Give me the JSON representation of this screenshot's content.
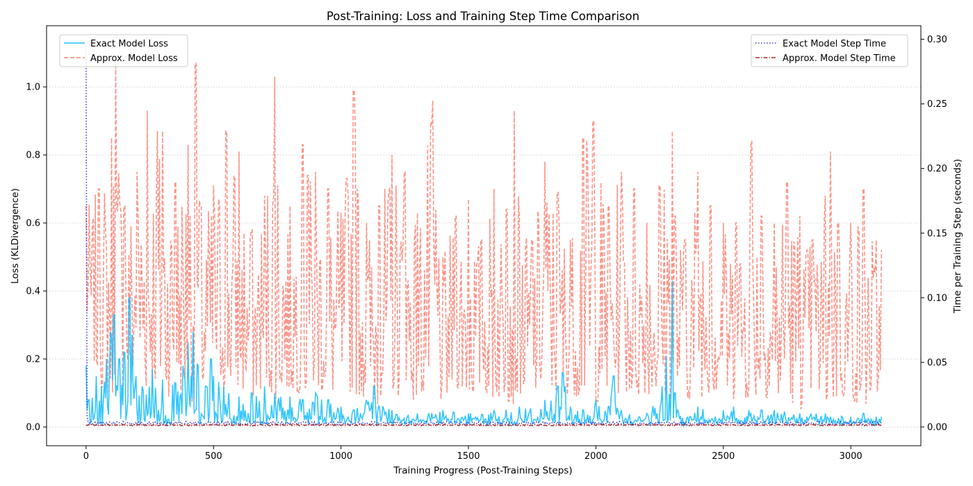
{
  "chart_data": {
    "type": "line",
    "title": "Post-Training: Loss and Training Step Time Comparison",
    "xlabel": "Training Progress (Post-Training Steps)",
    "ylabel_left": "Loss (KLDivergence)",
    "ylabel_right": "Time per Training Step (seconds)",
    "xlim": [
      -155,
      3275
    ],
    "ylim_left": [
      -0.055,
      1.18
    ],
    "ylim_right": [
      -0.0145,
      0.3105
    ],
    "x_ticks": [
      0,
      500,
      1000,
      1500,
      2000,
      2500,
      3000
    ],
    "y_left_ticks": [
      0.0,
      0.2,
      0.4,
      0.6,
      0.8,
      1.0
    ],
    "y_right_ticks": [
      0.0,
      0.05,
      0.1,
      0.15,
      0.2,
      0.25,
      0.3
    ],
    "grid": "horizontal dotted",
    "legend_left_placement": "upper left",
    "legend_right_placement": "upper right",
    "n_steps": 3120,
    "series": [
      {
        "name": "Exact Model Loss",
        "axis": "left",
        "color": "#1ec0ff",
        "style": "solid",
        "baseline": 0.02,
        "x": [
          0,
          10,
          40,
          60,
          80,
          95,
          110,
          130,
          150,
          170,
          195,
          220,
          260,
          300,
          350,
          380,
          400,
          420,
          440,
          470,
          490,
          500,
          540,
          560,
          600,
          650,
          700,
          740,
          800,
          850,
          900,
          950,
          1000,
          1050,
          1100,
          1130,
          1200,
          1300,
          1400,
          1500,
          1600,
          1700,
          1800,
          1850,
          1870,
          1880,
          1900,
          1950,
          2000,
          2050,
          2070,
          2100,
          2200,
          2260,
          2300,
          2310,
          2320,
          2400,
          2500,
          2540,
          2600,
          2650,
          2700,
          2800,
          2900,
          3000,
          3050,
          3100,
          3120
        ],
        "peaks": [
          0.18,
          0.08,
          0.15,
          0.12,
          0.2,
          0.28,
          0.33,
          0.2,
          0.22,
          0.38,
          0.15,
          0.12,
          0.17,
          0.14,
          0.13,
          0.18,
          0.25,
          0.28,
          0.18,
          0.12,
          0.2,
          0.15,
          0.12,
          0.1,
          0.09,
          0.1,
          0.12,
          0.1,
          0.09,
          0.08,
          0.1,
          0.08,
          0.06,
          0.05,
          0.08,
          0.12,
          0.05,
          0.04,
          0.05,
          0.04,
          0.05,
          0.06,
          0.08,
          0.12,
          0.16,
          0.12,
          0.06,
          0.05,
          0.08,
          0.06,
          0.15,
          0.05,
          0.04,
          0.12,
          0.43,
          0.1,
          0.05,
          0.06,
          0.05,
          0.06,
          0.05,
          0.05,
          0.05,
          0.04,
          0.04,
          0.03,
          0.04,
          0.03,
          0.03
        ]
      },
      {
        "name": "Approx. Model Loss",
        "axis": "left",
        "color": "#fa8072",
        "style": "dashed",
        "x": [
          0,
          50,
          100,
          115,
          150,
          200,
          240,
          280,
          300,
          350,
          400,
          430,
          450,
          500,
          550,
          600,
          650,
          700,
          740,
          800,
          850,
          870,
          900,
          950,
          1000,
          1050,
          1100,
          1150,
          1200,
          1250,
          1300,
          1360,
          1400,
          1450,
          1500,
          1550,
          1600,
          1650,
          1680,
          1700,
          1750,
          1800,
          1850,
          1900,
          1950,
          1990,
          2050,
          2100,
          2150,
          2200,
          2250,
          2300,
          2310,
          2350,
          2400,
          2450,
          2500,
          2550,
          2610,
          2650,
          2700,
          2750,
          2800,
          2850,
          2900,
          2920,
          2950,
          3000,
          3050,
          3100,
          3120
        ],
        "lows": [
          0.3,
          0.12,
          0.08,
          0.12,
          0.1,
          0.15,
          0.1,
          0.12,
          0.08,
          0.1,
          0.1,
          0.05,
          0.08,
          0.12,
          0.1,
          0.1,
          0.08,
          0.12,
          0.08,
          0.1,
          0.1,
          0.06,
          0.12,
          0.08,
          0.1,
          0.1,
          0.08,
          0.05,
          0.1,
          0.08,
          0.08,
          0.1,
          0.06,
          0.12,
          0.08,
          0.1,
          0.08,
          0.08,
          0.06,
          0.1,
          0.08,
          0.12,
          0.08,
          0.1,
          0.08,
          0.07,
          0.08,
          0.1,
          0.08,
          0.1,
          0.08,
          0.08,
          0.1,
          0.08,
          0.08,
          0.1,
          0.08,
          0.08,
          0.08,
          0.1,
          0.07,
          0.08,
          0.05,
          0.08,
          0.05,
          0.06,
          0.08,
          0.08,
          0.05,
          0.08,
          0.08
        ],
        "highs": [
          0.65,
          0.7,
          0.85,
          1.07,
          0.65,
          0.75,
          0.93,
          0.87,
          0.87,
          0.72,
          0.83,
          1.07,
          0.65,
          0.71,
          0.87,
          0.81,
          0.58,
          0.68,
          1.03,
          0.65,
          0.83,
          0.74,
          0.75,
          0.7,
          0.63,
          0.99,
          0.6,
          0.65,
          0.8,
          0.75,
          0.63,
          0.96,
          0.5,
          0.62,
          0.67,
          0.55,
          0.7,
          0.64,
          0.93,
          0.62,
          0.55,
          0.78,
          0.69,
          0.55,
          0.85,
          0.9,
          0.65,
          0.75,
          0.7,
          0.6,
          0.71,
          0.87,
          0.62,
          0.55,
          0.75,
          0.65,
          0.6,
          0.6,
          0.84,
          0.62,
          0.6,
          0.72,
          0.62,
          0.55,
          0.68,
          0.81,
          0.6,
          0.6,
          0.7,
          0.55,
          0.52
        ]
      },
      {
        "name": "Exact Model Step Time",
        "axis": "right",
        "color": "#3a3ad0",
        "style": "dotted",
        "x": [
          0,
          1,
          3,
          6,
          10,
          3120
        ],
        "y": [
          0.295,
          0.12,
          0.01,
          0.004,
          0.003,
          0.003
        ]
      },
      {
        "name": "Approx. Model Step Time",
        "axis": "right",
        "color": "#a52a2a",
        "style": "dashdot",
        "x": [
          0,
          3120
        ],
        "y": [
          0.0015,
          0.0015
        ]
      }
    ]
  }
}
